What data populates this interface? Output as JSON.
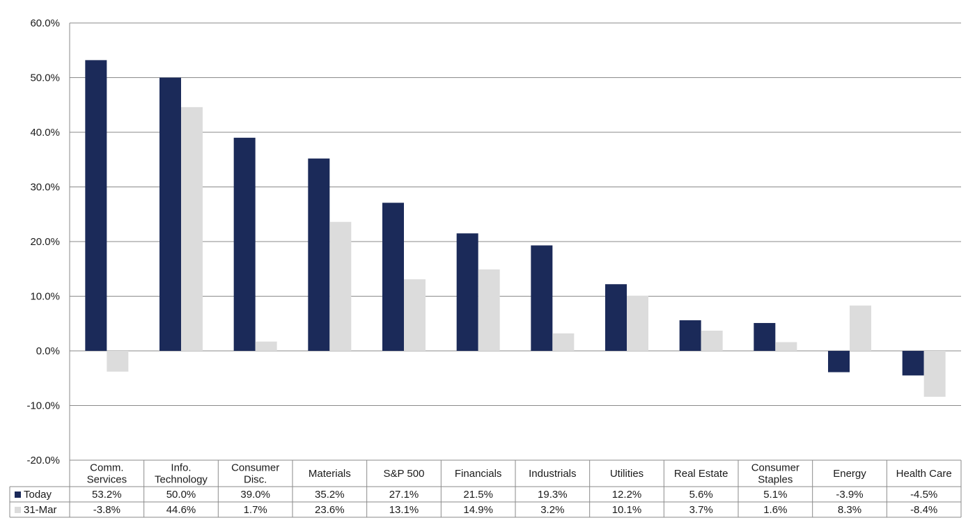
{
  "chart_data": {
    "type": "bar",
    "categories": [
      [
        "Comm.",
        "Services"
      ],
      [
        "Info.",
        "Technology"
      ],
      [
        "Consumer",
        "Disc."
      ],
      [
        "Materials"
      ],
      [
        "S&P 500"
      ],
      [
        "Financials"
      ],
      [
        "Industrials"
      ],
      [
        "Utilities"
      ],
      [
        "Real Estate"
      ],
      [
        "Consumer",
        "Staples"
      ],
      [
        "Energy"
      ],
      [
        "Health Care"
      ]
    ],
    "series": [
      {
        "name": "Today",
        "color": "#1b2a59",
        "values": [
          53.2,
          50.0,
          39.0,
          35.2,
          27.1,
          21.5,
          19.3,
          12.2,
          5.6,
          5.1,
          -3.9,
          -4.5
        ],
        "labels": [
          "53.2%",
          "50.0%",
          "39.0%",
          "35.2%",
          "27.1%",
          "21.5%",
          "19.3%",
          "12.2%",
          "5.6%",
          "5.1%",
          "-3.9%",
          "-4.5%"
        ]
      },
      {
        "name": "31-Mar",
        "color": "#dcdcdc",
        "values": [
          -3.8,
          44.6,
          1.7,
          23.6,
          13.1,
          14.9,
          3.2,
          10.1,
          3.7,
          1.6,
          8.3,
          -8.4
        ],
        "labels": [
          "-3.8%",
          "44.6%",
          "1.7%",
          "23.6%",
          "13.1%",
          "14.9%",
          "3.2%",
          "10.1%",
          "3.7%",
          "1.6%",
          "8.3%",
          "-8.4%"
        ]
      }
    ],
    "ylim": [
      -20,
      60
    ],
    "yticks": [
      -20,
      -10,
      0,
      10,
      20,
      30,
      40,
      50,
      60
    ],
    "ytick_labels": [
      "-20.0%",
      "-10.0%",
      "0.0%",
      "10.0%",
      "20.0%",
      "30.0%",
      "40.0%",
      "50.0%",
      "60.0%"
    ],
    "grid": true,
    "legend": "data-table"
  }
}
